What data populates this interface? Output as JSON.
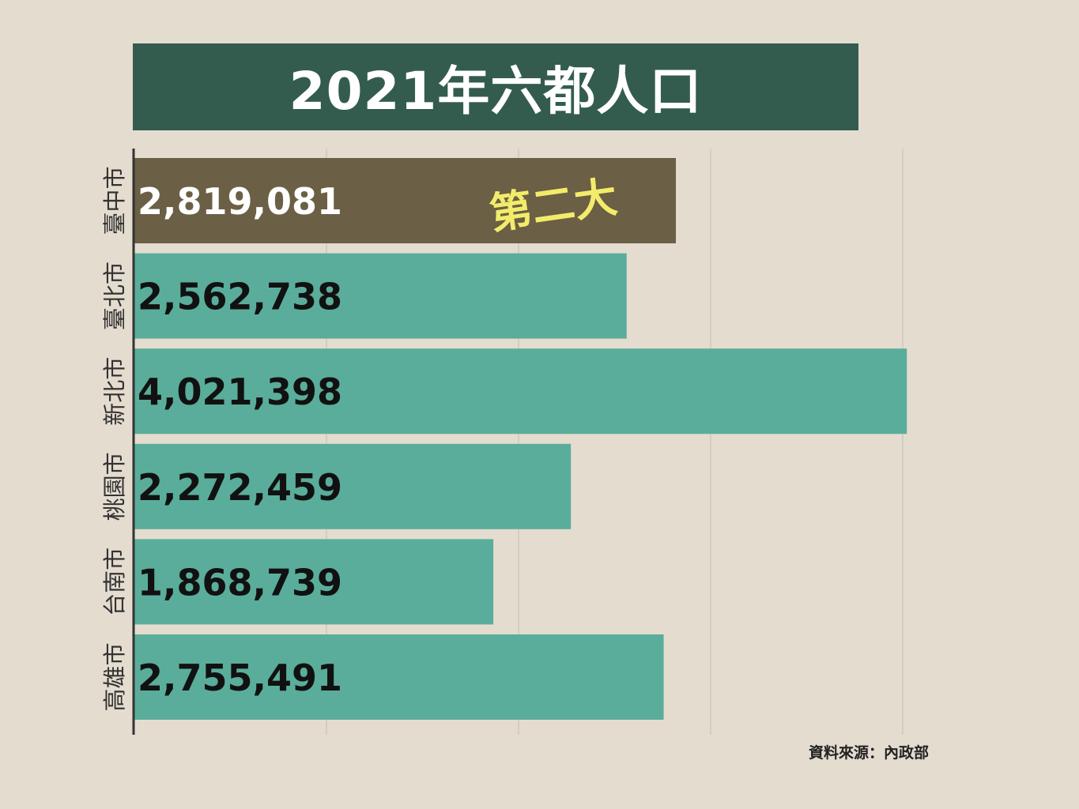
{
  "title": "2021年六都人口",
  "source": "資料來源：內政部",
  "colors": {
    "background": "#e4dccf",
    "title_bg": "#335c4f",
    "bar": "#5aad9b",
    "highlight_bar": "#6b5f45",
    "highlight_label": "#f3ec6b",
    "grid": "#cfc8bb"
  },
  "chart_data": {
    "type": "bar",
    "orientation": "horizontal",
    "title": "2021年六都人口",
    "categories": [
      "臺中市",
      "臺北市",
      "新北市",
      "桃園市",
      "台南市",
      "高雄市"
    ],
    "values": [
      2819081,
      2562738,
      4021398,
      2272459,
      1868739,
      2755491
    ],
    "value_labels": [
      "2,819,081",
      "2,562,738",
      "4,021,398",
      "2,272,459",
      "1,868,739",
      "2,755,491"
    ],
    "xlim": [
      0,
      4000000
    ],
    "grid": true,
    "highlight": {
      "category": "臺中市",
      "label": "第二大"
    }
  }
}
